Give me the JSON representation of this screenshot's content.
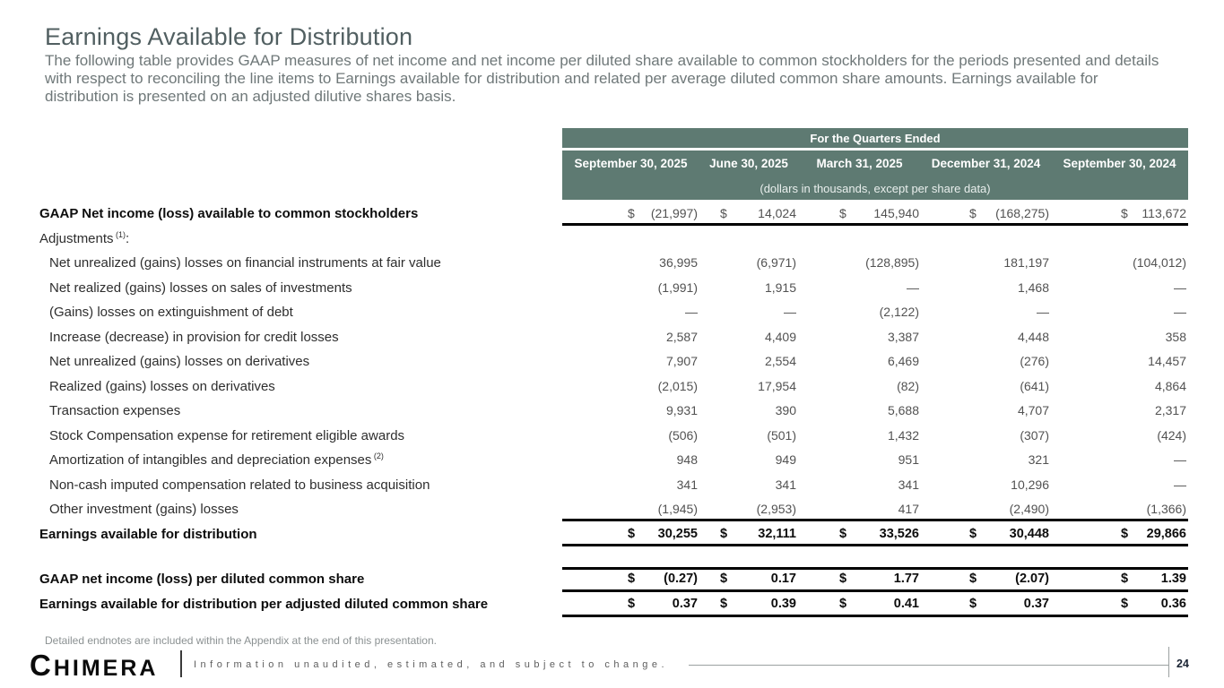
{
  "colors": {
    "table_header_green": "#5e7a72",
    "rule_black": "#000000",
    "title_gray": "#515f61"
  },
  "slide": {
    "title": "Earnings Available for Distribution",
    "subtitle": "The following table provides GAAP measures of net income and net income per diluted share available to common stockholders for the periods presented and details with respect to reconciling the line items to Earnings available for distribution and related per average diluted common share amounts.  Earnings available for distribution is presented on an adjusted dilutive shares basis.",
    "footnote": "Detailed endnotes are included within the Appendix at the end of this presentation.",
    "footer": {
      "logo": "CHIMERA",
      "disclaimer": "Information unaudited, estimated, and subject to change.",
      "page_number": "24"
    }
  },
  "table": {
    "spanner": "For the Quarters Ended",
    "columns": [
      "September 30, 2025",
      "June 30, 2025",
      "March 31, 2025",
      "December 31, 2024",
      "September 30, 2024"
    ],
    "units_note": "(dollars in thousands, except per share data)",
    "rows": [
      {
        "label": "GAAP Net income (loss) available to common stockholders",
        "label_bold": true,
        "values_bold": false,
        "indent": false,
        "dollar": true,
        "values": [
          "(21,997)",
          "14,024",
          "145,940",
          "(168,275)",
          "113,672"
        ]
      },
      {
        "label": "Adjustments",
        "sup": "(1)",
        "suffix": ":",
        "label_bold": false,
        "values_bold": false,
        "indent": false,
        "dollar": false,
        "values": null
      },
      {
        "label": "Net unrealized (gains) losses on financial instruments at fair value",
        "label_bold": false,
        "values_bold": false,
        "indent": true,
        "dollar": false,
        "values": [
          "36,995",
          "(6,971)",
          "(128,895)",
          "181,197",
          "(104,012)"
        ]
      },
      {
        "label": "Net realized (gains) losses on sales of investments",
        "label_bold": false,
        "values_bold": false,
        "indent": true,
        "dollar": false,
        "values": [
          "(1,991)",
          "1,915",
          "—",
          "1,468",
          "—"
        ]
      },
      {
        "label": "(Gains) losses on extinguishment of debt",
        "label_bold": false,
        "values_bold": false,
        "indent": true,
        "dollar": false,
        "values": [
          "—",
          "—",
          "(2,122)",
          "—",
          "—"
        ]
      },
      {
        "label": "Increase (decrease) in provision for credit losses",
        "label_bold": false,
        "values_bold": false,
        "indent": true,
        "dollar": false,
        "values": [
          "2,587",
          "4,409",
          "3,387",
          "4,448",
          "358"
        ]
      },
      {
        "label": "Net unrealized (gains) losses on derivatives",
        "label_bold": false,
        "values_bold": false,
        "indent": true,
        "dollar": false,
        "values": [
          "7,907",
          "2,554",
          "6,469",
          "(276)",
          "14,457"
        ]
      },
      {
        "label": "Realized (gains) losses on derivatives",
        "label_bold": false,
        "values_bold": false,
        "indent": true,
        "dollar": false,
        "values": [
          "(2,015)",
          "17,954",
          "(82)",
          "(641)",
          "4,864"
        ]
      },
      {
        "label": "Transaction expenses",
        "label_bold": false,
        "values_bold": false,
        "indent": true,
        "dollar": false,
        "values": [
          "9,931",
          "390",
          "5,688",
          "4,707",
          "2,317"
        ]
      },
      {
        "label": "Stock Compensation expense for retirement eligible awards",
        "label_bold": false,
        "values_bold": false,
        "indent": true,
        "dollar": false,
        "values": [
          "(506)",
          "(501)",
          "1,432",
          "(307)",
          "(424)"
        ]
      },
      {
        "label": "Amortization of intangibles and depreciation expenses",
        "sup": "(2)",
        "label_bold": false,
        "values_bold": false,
        "indent": true,
        "dollar": false,
        "values": [
          "948",
          "949",
          "951",
          "321",
          "—"
        ]
      },
      {
        "label": "Non-cash imputed compensation related to business acquisition",
        "label_bold": false,
        "values_bold": false,
        "indent": true,
        "dollar": false,
        "values": [
          "341",
          "341",
          "341",
          "10,296",
          "—"
        ]
      },
      {
        "label": "Other investment (gains) losses",
        "label_bold": false,
        "values_bold": false,
        "indent": true,
        "dollar": false,
        "values": [
          "(1,945)",
          "(2,953)",
          "417",
          "(2,490)",
          "(1,366)"
        ]
      },
      {
        "label": "Earnings available for distribution",
        "label_bold": true,
        "values_bold": true,
        "indent": false,
        "dollar": true,
        "values": [
          "30,255",
          "32,111",
          "33,526",
          "30,448",
          "29,866"
        ]
      }
    ],
    "per_share_rows": [
      {
        "label": "GAAP net income (loss) per diluted common share",
        "label_bold": true,
        "values_bold": true,
        "indent": false,
        "dollar": true,
        "values": [
          "(0.27)",
          "0.17",
          "1.77",
          "(2.07)",
          "1.39"
        ]
      },
      {
        "label": "Earnings available for distribution per adjusted diluted common share",
        "label_bold": true,
        "values_bold": true,
        "indent": false,
        "dollar": true,
        "values": [
          "0.37",
          "0.39",
          "0.41",
          "0.37",
          "0.36"
        ]
      }
    ]
  }
}
